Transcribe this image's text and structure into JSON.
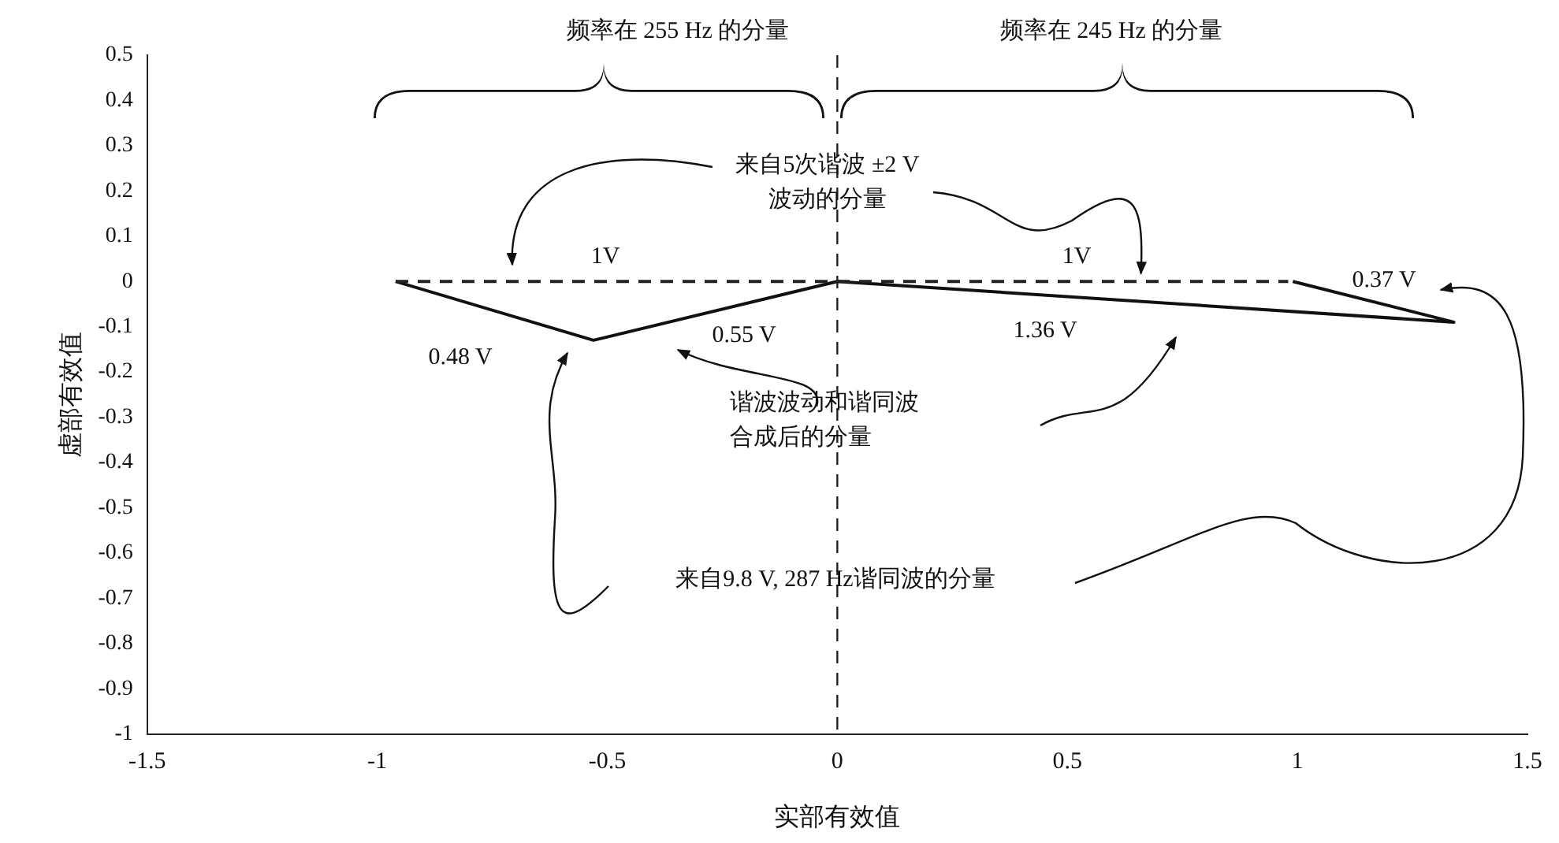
{
  "chart_data": {
    "type": "line",
    "xlabel": "实部有效值",
    "ylabel": "虚部有效值",
    "xlim": [
      -1.5,
      1.5
    ],
    "xticks": [
      -1.5,
      -1,
      -0.5,
      0,
      0.5,
      1,
      1.5
    ],
    "ylim": [
      -1,
      0.5
    ],
    "yticks": [
      -1,
      -0.9,
      -0.8,
      -0.7,
      -0.6,
      -0.5,
      -0.4,
      -0.3,
      -0.2,
      -0.1,
      0,
      0.1,
      0.2,
      0.3,
      0.4,
      0.5
    ],
    "grid": false,
    "legend": false,
    "marker": "none",
    "series": [
      {
        "color": "#222222",
        "line_style": "dashed",
        "x": [
          -0.96,
          0,
          0.98
        ],
        "values": [
          0,
          0,
          0
        ]
      },
      {
        "color": "#111111",
        "line_style": "solid",
        "x": [
          -0.96,
          -0.53,
          0,
          1.34,
          0.99
        ],
        "values": [
          0,
          -0.13,
          0,
          -0.09,
          0
        ]
      }
    ],
    "ref_lines": [
      {
        "axis": "x",
        "value": 0,
        "line_style": "dashed",
        "color": "#222222"
      }
    ],
    "annotations": [
      "频率在 255 Hz 的分量",
      "频率在 245 Hz 的分量",
      {
        "text": "来自5次谐波 ±2 V 波动的分量",
        "x": 0.66,
        "y": 0
      },
      "谐波波动和谐同波合成后的分量",
      "来自9.8 V, 287 Hz谐同波的分量",
      "1V",
      "1V",
      "0.48 V",
      "0.55 V",
      "1.36 V",
      "0.37 V"
    ]
  }
}
